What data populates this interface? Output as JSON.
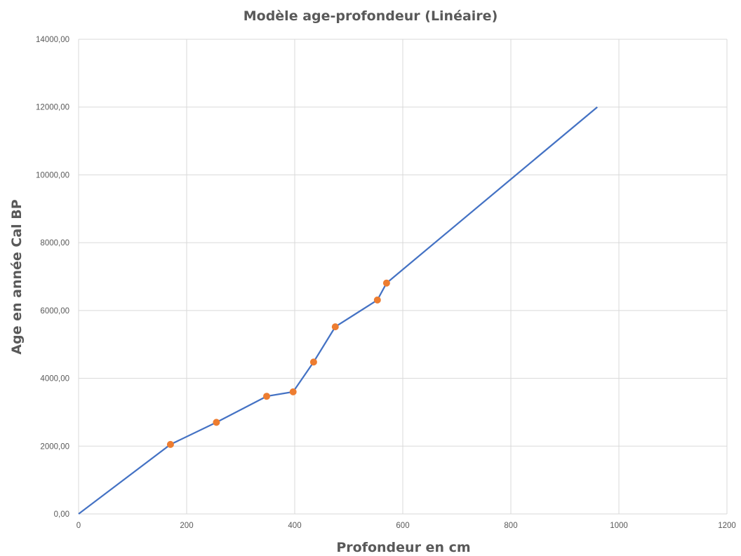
{
  "chart_data": {
    "type": "line",
    "title": "Modèle age-profondeur (Linéaire)",
    "xlabel": "Profondeur en cm",
    "ylabel": "Age en année Cal BP",
    "xlim": [
      0,
      1200
    ],
    "ylim": [
      0,
      14000
    ],
    "x_ticks": [
      "0",
      "200",
      "400",
      "600",
      "800",
      "1000",
      "1200"
    ],
    "y_ticks": [
      "0,00",
      "2000,00",
      "4000,00",
      "6000,00",
      "8000,00",
      "10000,00",
      "12000,00",
      "14000,00"
    ],
    "grid": true,
    "series": [
      {
        "type": "line",
        "color": "#4472c4",
        "points": [
          [
            0,
            0
          ],
          [
            170,
            2050
          ],
          [
            255,
            2700
          ],
          [
            348,
            3470
          ],
          [
            397,
            3600
          ],
          [
            435,
            4480
          ],
          [
            475,
            5520
          ],
          [
            553,
            6310
          ],
          [
            570,
            6810
          ],
          [
            960,
            12000
          ]
        ]
      },
      {
        "type": "scatter",
        "color": "#ed7d31",
        "points": [
          [
            170,
            2050
          ],
          [
            255,
            2700
          ],
          [
            348,
            3470
          ],
          [
            397,
            3600
          ],
          [
            435,
            4480
          ],
          [
            475,
            5520
          ],
          [
            553,
            6310
          ],
          [
            570,
            6810
          ]
        ]
      }
    ]
  }
}
